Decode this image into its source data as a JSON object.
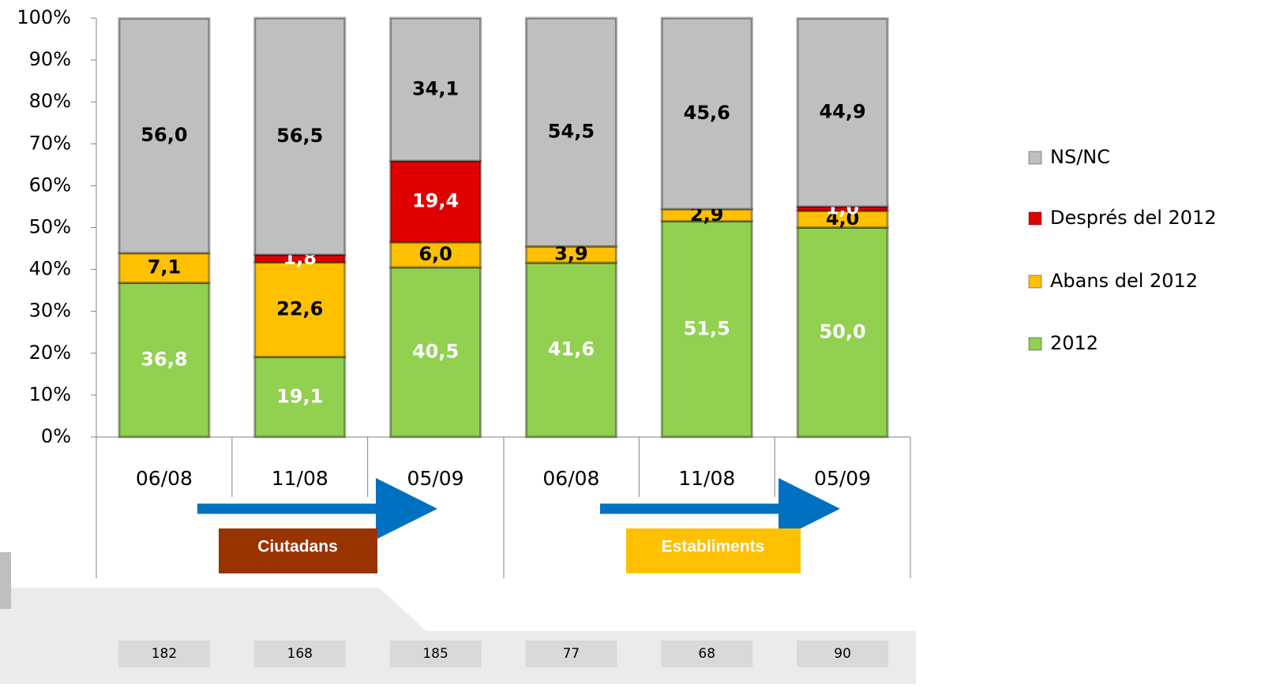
{
  "chart_data": {
    "type": "stacked_bar",
    "categories": [
      "06/08",
      "11/08",
      "05/09",
      "06/08",
      "11/08",
      "05/09"
    ],
    "groups": [
      "Ciutadans",
      "Establiments"
    ],
    "sample_sizes": [
      182,
      168,
      185,
      77,
      68,
      90
    ],
    "series": [
      {
        "name": "2012",
        "color": "#92d050",
        "label_color": "#ffffff",
        "values": [
          36.8,
          19.1,
          40.5,
          41.6,
          51.5,
          50.0
        ],
        "value_labels": [
          "36,8",
          "19,1",
          "40,5",
          "41,6",
          "51,5",
          "50,0"
        ]
      },
      {
        "name": "Abans del 2012",
        "color": "#ffc000",
        "label_color": "#000000",
        "values": [
          7.1,
          22.6,
          6.0,
          3.9,
          2.9,
          4.0
        ],
        "value_labels": [
          "7,1",
          "22,6",
          "6,0",
          "3,9",
          "2,9",
          "4,0"
        ]
      },
      {
        "name": "Després del 2012",
        "color": "#e00000",
        "label_color": "#ffffff",
        "values": [
          null,
          1.8,
          19.4,
          null,
          null,
          1.0
        ],
        "value_labels": [
          null,
          "1,8",
          "19,4",
          null,
          null,
          "1,0"
        ]
      },
      {
        "name": "NS/NC",
        "color": "#bfbfbf",
        "label_color": "#000000",
        "values": [
          56.0,
          56.5,
          34.1,
          54.5,
          45.6,
          44.9
        ],
        "value_labels": [
          "56,0",
          "56,5",
          "34,1",
          "54,5",
          "45,6",
          "44,9"
        ]
      }
    ],
    "ylim": [
      0,
      100
    ],
    "yticks": [
      {
        "value": 0,
        "label": "0%"
      },
      {
        "value": 10,
        "label": "10%"
      },
      {
        "value": 20,
        "label": "20%"
      },
      {
        "value": 30,
        "label": "30%"
      },
      {
        "value": 40,
        "label": "40%"
      },
      {
        "value": 50,
        "label": "50%"
      },
      {
        "value": 60,
        "label": "60%"
      },
      {
        "value": 70,
        "label": "70%"
      },
      {
        "value": 80,
        "label": "80%"
      },
      {
        "value": 90,
        "label": "90%"
      },
      {
        "value": 100,
        "label": "100%"
      }
    ],
    "legend": "right"
  }
}
